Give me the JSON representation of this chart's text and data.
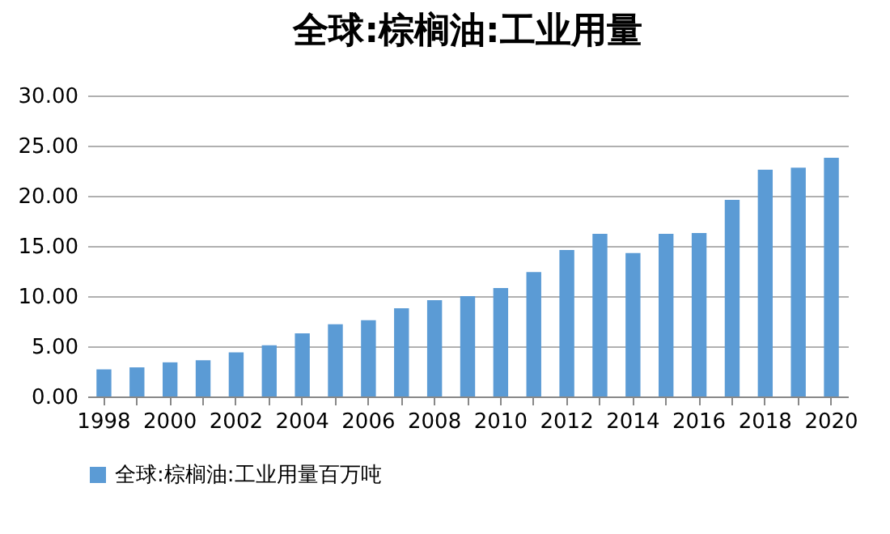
{
  "chart_data": {
    "type": "bar",
    "title": "全球:棕榈油:工业用量",
    "categories": [
      "1998",
      null,
      "2000",
      null,
      "2002",
      null,
      "2004",
      null,
      "2006",
      null,
      "2008",
      null,
      "2010",
      null,
      "2012",
      null,
      "2014",
      null,
      "2016",
      null,
      "2018",
      null,
      "2020"
    ],
    "series": [
      {
        "name": "全球:棕榈油:工业用量百万吨",
        "color": "#5b9bd5",
        "values": [
          2.7,
          2.9,
          3.4,
          3.6,
          4.4,
          5.1,
          6.3,
          7.2,
          7.6,
          8.8,
          9.6,
          10.0,
          10.8,
          12.4,
          14.6,
          16.2,
          14.3,
          16.2,
          16.3,
          19.6,
          22.6,
          22.8,
          23.8
        ]
      }
    ],
    "ylim": [
      0,
      30
    ],
    "yticks": [
      {
        "value": 0,
        "label": "0.00"
      },
      {
        "value": 5,
        "label": "5.00"
      },
      {
        "value": 10,
        "label": "10.00"
      },
      {
        "value": 15,
        "label": "15.00"
      },
      {
        "value": 20,
        "label": "20.00"
      },
      {
        "value": 25,
        "label": "25.00"
      },
      {
        "value": 30,
        "label": "30.00"
      }
    ],
    "grid": "y",
    "legend": "bottom"
  }
}
